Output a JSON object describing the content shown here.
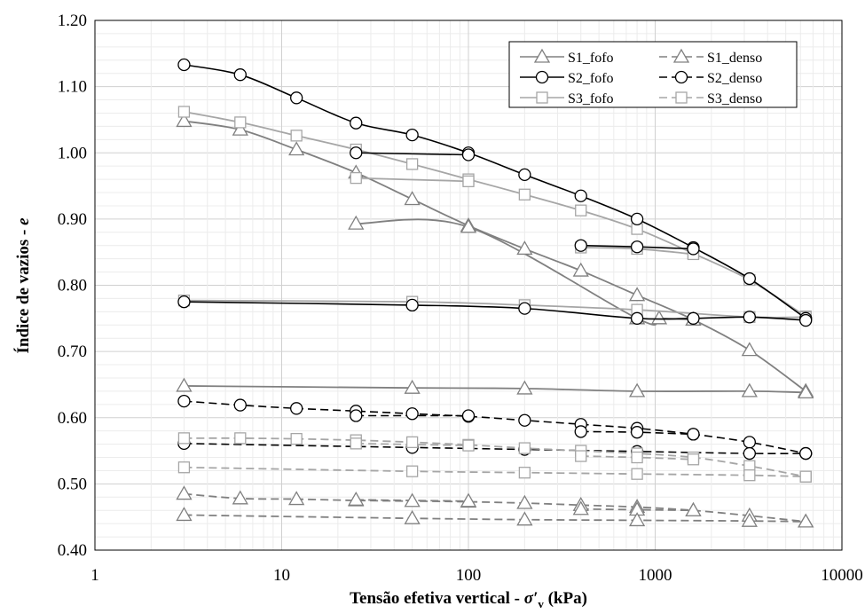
{
  "chart_data": {
    "type": "line",
    "xscale": "log",
    "xlim": [
      1,
      10000
    ],
    "ylim": [
      0.4,
      1.2
    ],
    "xlabel": "Tensão efetiva vertical - σ′v (kPa)",
    "xlabel_parts": {
      "main": "Tensão efetiva vertical - ",
      "symbol": "σ′",
      "sub": "v",
      "unit": " (kPa)"
    },
    "ylabel": "Índice de vazios - e",
    "ylabel_parts": {
      "main": "Índice de vazios - ",
      "symbol": "e"
    },
    "x_ticks": [
      1,
      10,
      100,
      1000,
      10000
    ],
    "x_tick_labels": [
      "1",
      "10",
      "100",
      "1000",
      "10000"
    ],
    "y_ticks": [
      0.4,
      0.5,
      0.6,
      0.7,
      0.8,
      0.9,
      1.0,
      1.1,
      1.2
    ],
    "y_tick_labels": [
      "0.40",
      "0.50",
      "0.60",
      "0.70",
      "0.80",
      "0.90",
      "1.00",
      "1.10",
      "1.20"
    ],
    "grid": true,
    "legend_position": "top-right",
    "series": [
      {
        "name": "S1_fofo",
        "marker": "triangle",
        "dash": "solid",
        "color": "#808080",
        "segments": [
          [
            [
              3,
              1.048
            ],
            [
              6,
              1.035
            ],
            [
              12,
              1.005
            ],
            [
              25,
              0.97
            ],
            [
              50,
              0.93
            ],
            [
              100,
              0.89
            ],
            [
              200,
              0.855
            ],
            [
              400,
              0.822
            ],
            [
              800,
              0.785
            ],
            [
              1600,
              0.748
            ],
            [
              3200,
              0.702
            ],
            [
              6400,
              0.64
            ]
          ],
          [
            [
              25,
              0.893
            ],
            [
              100,
              0.888
            ],
            [
              800,
              0.75
            ],
            [
              1050,
              0.75
            ],
            [
              1600,
              0.748
            ]
          ],
          [
            [
              3,
              0.648
            ],
            [
              50,
              0.645
            ],
            [
              200,
              0.644
            ],
            [
              800,
              0.64
            ],
            [
              3200,
              0.64
            ],
            [
              6400,
              0.638
            ]
          ]
        ]
      },
      {
        "name": "S2_fofo",
        "marker": "circle",
        "dash": "solid",
        "color": "#000000",
        "segments": [
          [
            [
              3,
              1.133
            ],
            [
              6,
              1.118
            ],
            [
              12,
              1.083
            ],
            [
              25,
              1.045
            ],
            [
              50,
              1.027
            ],
            [
              100,
              1.0
            ],
            [
              200,
              0.967
            ],
            [
              400,
              0.935
            ],
            [
              800,
              0.9
            ],
            [
              1600,
              0.857
            ],
            [
              3200,
              0.81
            ],
            [
              6400,
              0.75
            ]
          ],
          [
            [
              25,
              1.0
            ],
            [
              100,
              0.997
            ]
          ],
          [
            [
              400,
              0.86
            ],
            [
              800,
              0.858
            ],
            [
              1600,
              0.855
            ]
          ],
          [
            [
              3,
              0.775
            ],
            [
              50,
              0.77
            ],
            [
              200,
              0.765
            ],
            [
              800,
              0.75
            ],
            [
              1600,
              0.75
            ],
            [
              3200,
              0.752
            ],
            [
              6400,
              0.747
            ]
          ]
        ]
      },
      {
        "name": "S3_fofo",
        "marker": "square",
        "dash": "solid",
        "color": "#A6A6A6",
        "segments": [
          [
            [
              3,
              1.062
            ],
            [
              6,
              1.046
            ],
            [
              12,
              1.026
            ],
            [
              25,
              1.005
            ],
            [
              50,
              0.983
            ],
            [
              100,
              0.96
            ],
            [
              200,
              0.937
            ],
            [
              400,
              0.913
            ],
            [
              800,
              0.885
            ],
            [
              1600,
              0.848
            ],
            [
              3200,
              0.808
            ],
            [
              6400,
              0.753
            ]
          ],
          [
            [
              25,
              0.962
            ],
            [
              100,
              0.957
            ]
          ],
          [
            [
              400,
              0.857
            ],
            [
              800,
              0.855
            ],
            [
              1600,
              0.847
            ]
          ],
          [
            [
              3,
              0.777
            ],
            [
              50,
              0.775
            ],
            [
              200,
              0.77
            ],
            [
              800,
              0.763
            ],
            [
              3200,
              0.752
            ],
            [
              6400,
              0.752
            ]
          ]
        ]
      },
      {
        "name": "S1_denso",
        "marker": "triangle",
        "dash": "dashed",
        "color": "#808080",
        "segments": [
          [
            [
              3,
              0.485
            ],
            [
              6,
              0.478
            ],
            [
              12,
              0.477
            ],
            [
              25,
              0.475
            ],
            [
              50,
              0.474
            ],
            [
              100,
              0.473
            ],
            [
              200,
              0.471
            ],
            [
              400,
              0.468
            ],
            [
              800,
              0.465
            ],
            [
              1600,
              0.46
            ],
            [
              3200,
              0.452
            ],
            [
              6400,
              0.443
            ]
          ],
          [
            [
              25,
              0.476
            ],
            [
              100,
              0.474
            ]
          ],
          [
            [
              400,
              0.462
            ],
            [
              800,
              0.461
            ],
            [
              1600,
              0.46
            ]
          ],
          [
            [
              3,
              0.453
            ],
            [
              50,
              0.448
            ],
            [
              200,
              0.446
            ],
            [
              800,
              0.445
            ],
            [
              3200,
              0.444
            ],
            [
              6400,
              0.443
            ]
          ]
        ]
      },
      {
        "name": "S2_denso",
        "marker": "circle",
        "dash": "dashed",
        "color": "#000000",
        "segments": [
          [
            [
              3,
              0.625
            ],
            [
              6,
              0.619
            ],
            [
              12,
              0.614
            ],
            [
              25,
              0.61
            ],
            [
              50,
              0.606
            ],
            [
              100,
              0.602
            ],
            [
              200,
              0.596
            ],
            [
              400,
              0.59
            ],
            [
              800,
              0.584
            ],
            [
              1600,
              0.575
            ],
            [
              3200,
              0.563
            ],
            [
              6400,
              0.546
            ]
          ],
          [
            [
              25,
              0.603
            ],
            [
              100,
              0.603
            ]
          ],
          [
            [
              400,
              0.579
            ],
            [
              800,
              0.578
            ],
            [
              1600,
              0.575
            ]
          ],
          [
            [
              3,
              0.561
            ],
            [
              50,
              0.555
            ],
            [
              200,
              0.552
            ],
            [
              800,
              0.549
            ],
            [
              3200,
              0.546
            ],
            [
              6400,
              0.546
            ]
          ]
        ]
      },
      {
        "name": "S3_denso",
        "marker": "square",
        "dash": "dashed",
        "color": "#A6A6A6",
        "segments": [
          [
            [
              3,
              0.569
            ],
            [
              6,
              0.569
            ],
            [
              12,
              0.568
            ],
            [
              25,
              0.566
            ],
            [
              50,
              0.563
            ],
            [
              100,
              0.559
            ],
            [
              200,
              0.554
            ],
            [
              400,
              0.55
            ],
            [
              800,
              0.546
            ],
            [
              1600,
              0.54
            ],
            [
              3200,
              0.527
            ],
            [
              6400,
              0.511
            ]
          ],
          [
            [
              25,
              0.561
            ],
            [
              100,
              0.558
            ]
          ],
          [
            [
              400,
              0.542
            ],
            [
              800,
              0.54
            ],
            [
              1600,
              0.537
            ]
          ],
          [
            [
              3,
              0.525
            ],
            [
              50,
              0.519
            ],
            [
              200,
              0.517
            ],
            [
              800,
              0.515
            ],
            [
              3200,
              0.513
            ],
            [
              6400,
              0.511
            ]
          ]
        ]
      }
    ],
    "legend_order": [
      0,
      3,
      1,
      4,
      2,
      5
    ]
  }
}
